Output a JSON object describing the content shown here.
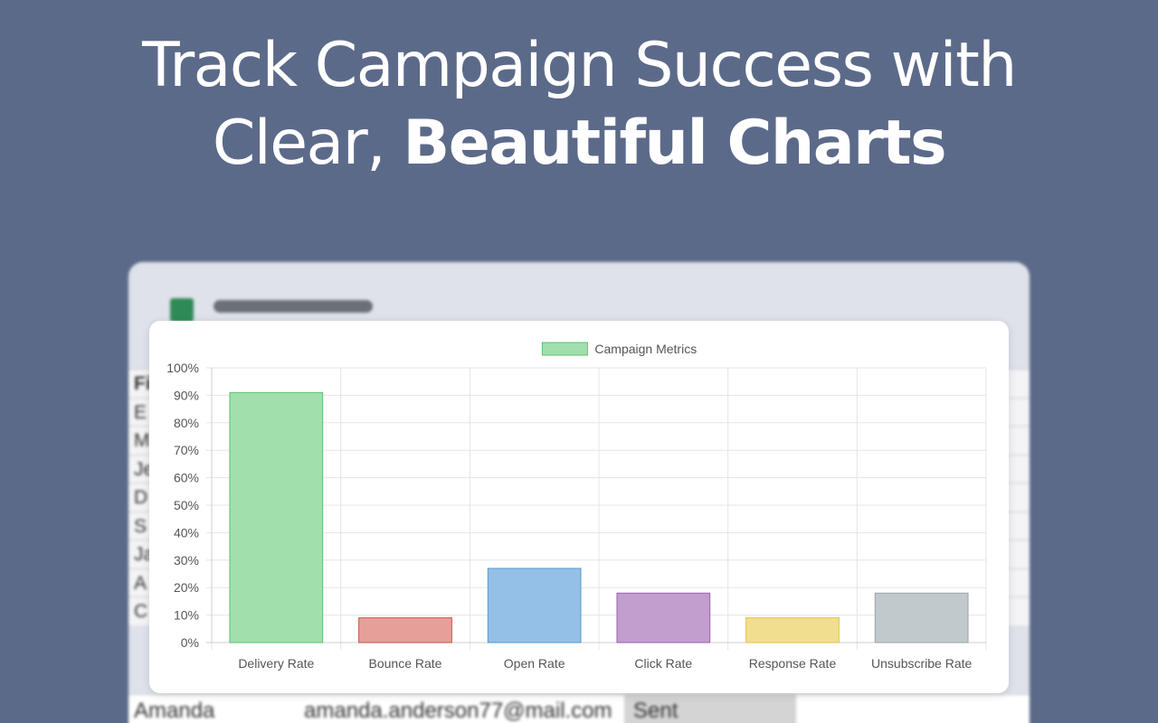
{
  "headline": {
    "line1": "Track Campaign Success with",
    "line2_light": "Clear, ",
    "line2_bold": "Beautiful Charts"
  },
  "background_sheet": {
    "row_initials": [
      "Fi",
      "E",
      "M",
      "Je",
      "D",
      "S",
      "Ja",
      "A",
      "C"
    ],
    "last_row": {
      "name": "Amanda",
      "email": "amanda.anderson77@mail.com",
      "status": "Sent"
    },
    "colors": {
      "app_icon": "#2e8b57"
    }
  },
  "chart_data": {
    "type": "bar",
    "legend": {
      "label": "Campaign Metrics",
      "position": "top-center"
    },
    "categories": [
      "Delivery Rate",
      "Bounce Rate",
      "Open Rate",
      "Click Rate",
      "Response Rate",
      "Unsubscribe Rate"
    ],
    "values": [
      91,
      9,
      27,
      18,
      9,
      18
    ],
    "unit": "%",
    "ylim": [
      0,
      100
    ],
    "yticks": [
      0,
      10,
      20,
      30,
      40,
      50,
      60,
      70,
      80,
      90,
      100
    ],
    "ytick_labels": [
      "0%",
      "10%",
      "20%",
      "30%",
      "40%",
      "50%",
      "60%",
      "70%",
      "80%",
      "90%",
      "100%"
    ],
    "grid": true,
    "bar_fill_colors": [
      "#a1dfad",
      "#e6a099",
      "#94bfe6",
      "#c29ecf",
      "#f2de8f",
      "#c2c9cc"
    ],
    "bar_border_colors": [
      "#5cc271",
      "#cc5247",
      "#5799d4",
      "#9a62b0",
      "#e5c23d",
      "#9aa4a8"
    ],
    "legend_fill": "#a1dfad",
    "legend_border": "#5cc271"
  }
}
